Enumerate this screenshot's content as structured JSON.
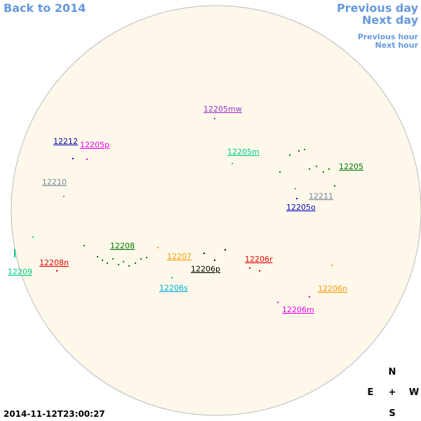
{
  "nav": {
    "back": "Back to 2014",
    "previous_day": "Previous day",
    "next_day": "Next day",
    "previous_hour": "Previous hour",
    "next_hour": "Next hour"
  },
  "regions": [
    {
      "label": "12205mw",
      "color": "#9933cc"
    },
    {
      "label": "12212",
      "color": "#0000aa"
    },
    {
      "label": "12205p",
      "color": "#ee00ee"
    },
    {
      "label": "12205m",
      "color": "#00cc88"
    },
    {
      "label": "12205",
      "color": "#007700"
    },
    {
      "label": "12210",
      "color": "#778899"
    },
    {
      "label": "12211",
      "color": "#778899"
    },
    {
      "label": "12205o",
      "color": "#0000cc"
    },
    {
      "label": "12208",
      "color": "#007700"
    },
    {
      "label": "12207",
      "color": "#ff9900"
    },
    {
      "label": "12206r",
      "color": "#ee0000"
    },
    {
      "label": "12208n",
      "color": "#ee0000"
    },
    {
      "label": "12206p",
      "color": "#000000"
    },
    {
      "label": "12209",
      "color": "#00cc88"
    },
    {
      "label": "12206s",
      "color": "#00aadd"
    },
    {
      "label": "12206n",
      "color": "#ff9900"
    },
    {
      "label": "12206m",
      "color": "#ee00ee"
    }
  ],
  "compass": {
    "north": "N",
    "east": "E",
    "center": "+",
    "west": "W",
    "south": "S"
  },
  "timestamp": "2014-11-12T23:00:27"
}
